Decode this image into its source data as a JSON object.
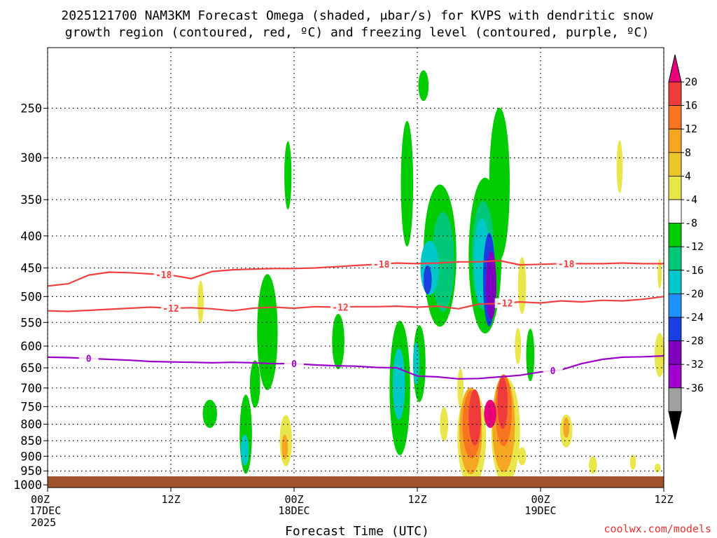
{
  "chart_data": {
    "type": "heatmap",
    "title_line1": "2025121700 NAM3KM Forecast Omega (shaded, μbar/s) for KVPS with dendritic snow",
    "title_line2": "growth region (contoured, red, ºC) and freezing level (contoured, purple, ºC)",
    "xlabel": "Forecast Time (UTC)",
    "credit": "coolwx.com/models",
    "x_range_hours": [
      0,
      60
    ],
    "y_range_hPa": [
      1010,
      200
    ],
    "y_ticks": [
      250,
      300,
      350,
      400,
      450,
      500,
      550,
      600,
      650,
      700,
      750,
      800,
      850,
      900,
      950,
      1000
    ],
    "y_tick_labels": [
      "250",
      "300",
      "350",
      "400",
      "450",
      "500",
      "550",
      "600",
      "650",
      "700",
      "750",
      "800",
      "850",
      "900",
      "950",
      "1000"
    ],
    "x_ticks_hours": [
      0,
      12,
      24,
      36,
      48,
      60
    ],
    "x_tick_labels": [
      {
        "line1": "00Z",
        "line2": "17DEC",
        "line3": "2025"
      },
      {
        "line1": "12Z",
        "line2": "",
        "line3": ""
      },
      {
        "line1": "00Z",
        "line2": "18DEC",
        "line3": ""
      },
      {
        "line1": "12Z",
        "line2": "",
        "line3": ""
      },
      {
        "line1": "00Z",
        "line2": "19DEC",
        "line3": ""
      },
      {
        "line1": "12Z",
        "line2": "",
        "line3": ""
      }
    ],
    "colorbar": {
      "labels": [
        "20",
        "16",
        "12",
        "8",
        "4",
        "-4",
        "-8",
        "-12",
        "-16",
        "-20",
        "-24",
        "-28",
        "-32",
        "-36"
      ],
      "colors_top_to_bottom": [
        "#e8007a",
        "#ef3b3b",
        "#f77520",
        "#f5a623",
        "#ecc52a",
        "#e8e64a",
        "#ffffff",
        "#00cc00",
        "#00c878",
        "#00c8c8",
        "#1e90ff",
        "#1a3fe0",
        "#8000c0",
        "#a000d0",
        "#a0a0a0",
        "#000000"
      ]
    },
    "omega_colors": {
      "green": "#00cc00",
      "teal": "#00c878",
      "cyan": "#00c8c8",
      "blue": "#1e90ff",
      "dblue": "#1a3fe0",
      "purple": "#8000c0",
      "gray": "#a0a0a0",
      "yellow": "#e8e64a",
      "gold": "#f5a623",
      "orange": "#f77520",
      "red": "#ef3b3b",
      "pink": "#e8007a"
    },
    "series": [
      {
        "name": "-18 °C isotherm",
        "label": "-18",
        "color": "#f04040",
        "hours": [
          0,
          2,
          4,
          6,
          8,
          10,
          12,
          14,
          16,
          18,
          20,
          22,
          24,
          26,
          28,
          30,
          32,
          34,
          36,
          38,
          40,
          42,
          44,
          46,
          48,
          50,
          52,
          54,
          56,
          58,
          60
        ],
        "pressure_hPa": [
          481,
          477,
          462,
          457,
          458,
          460,
          462,
          468,
          456,
          453,
          452,
          451,
          451,
          450,
          448,
          446,
          444,
          442,
          443,
          442,
          440,
          440,
          438,
          445,
          444,
          443,
          443,
          443,
          442,
          443,
          443
        ],
        "label_positions_hours": [
          11.3,
          32.5,
          50.5
        ]
      },
      {
        "name": "-12 °C isotherm",
        "label": "-12",
        "color": "#f04040",
        "hours": [
          0,
          2,
          4,
          6,
          8,
          10,
          12,
          14,
          16,
          18,
          20,
          22,
          24,
          26,
          28,
          30,
          32,
          34,
          36,
          38,
          40,
          42,
          44,
          46,
          48,
          50,
          52,
          54,
          56,
          58,
          60
        ],
        "pressure_hPa": [
          527,
          528,
          526,
          524,
          522,
          520,
          522,
          521,
          523,
          527,
          522,
          520,
          522,
          519,
          520,
          519,
          519,
          518,
          520,
          518,
          523,
          514,
          513,
          510,
          512,
          508,
          510,
          507,
          508,
          505,
          500
        ],
        "label_positions_hours": [
          12,
          28.5,
          44.5
        ]
      },
      {
        "name": "0 °C freezing level",
        "label": "0",
        "color": "#9a00c8",
        "hours": [
          0,
          2,
          4,
          6,
          8,
          10,
          12,
          14,
          16,
          18,
          20,
          22,
          24,
          26,
          28,
          30,
          32,
          34,
          36,
          38,
          40,
          42,
          44,
          46,
          48,
          50,
          52,
          54,
          56,
          58,
          60
        ],
        "pressure_hPa": [
          625,
          626,
          628,
          630,
          632,
          635,
          636,
          637,
          638,
          637,
          638,
          640,
          640,
          643,
          645,
          646,
          649,
          650,
          670,
          672,
          677,
          676,
          672,
          668,
          660,
          655,
          640,
          630,
          625,
          624,
          622
        ],
        "label_positions_hours": [
          4,
          24,
          49.2
        ]
      }
    ]
  }
}
